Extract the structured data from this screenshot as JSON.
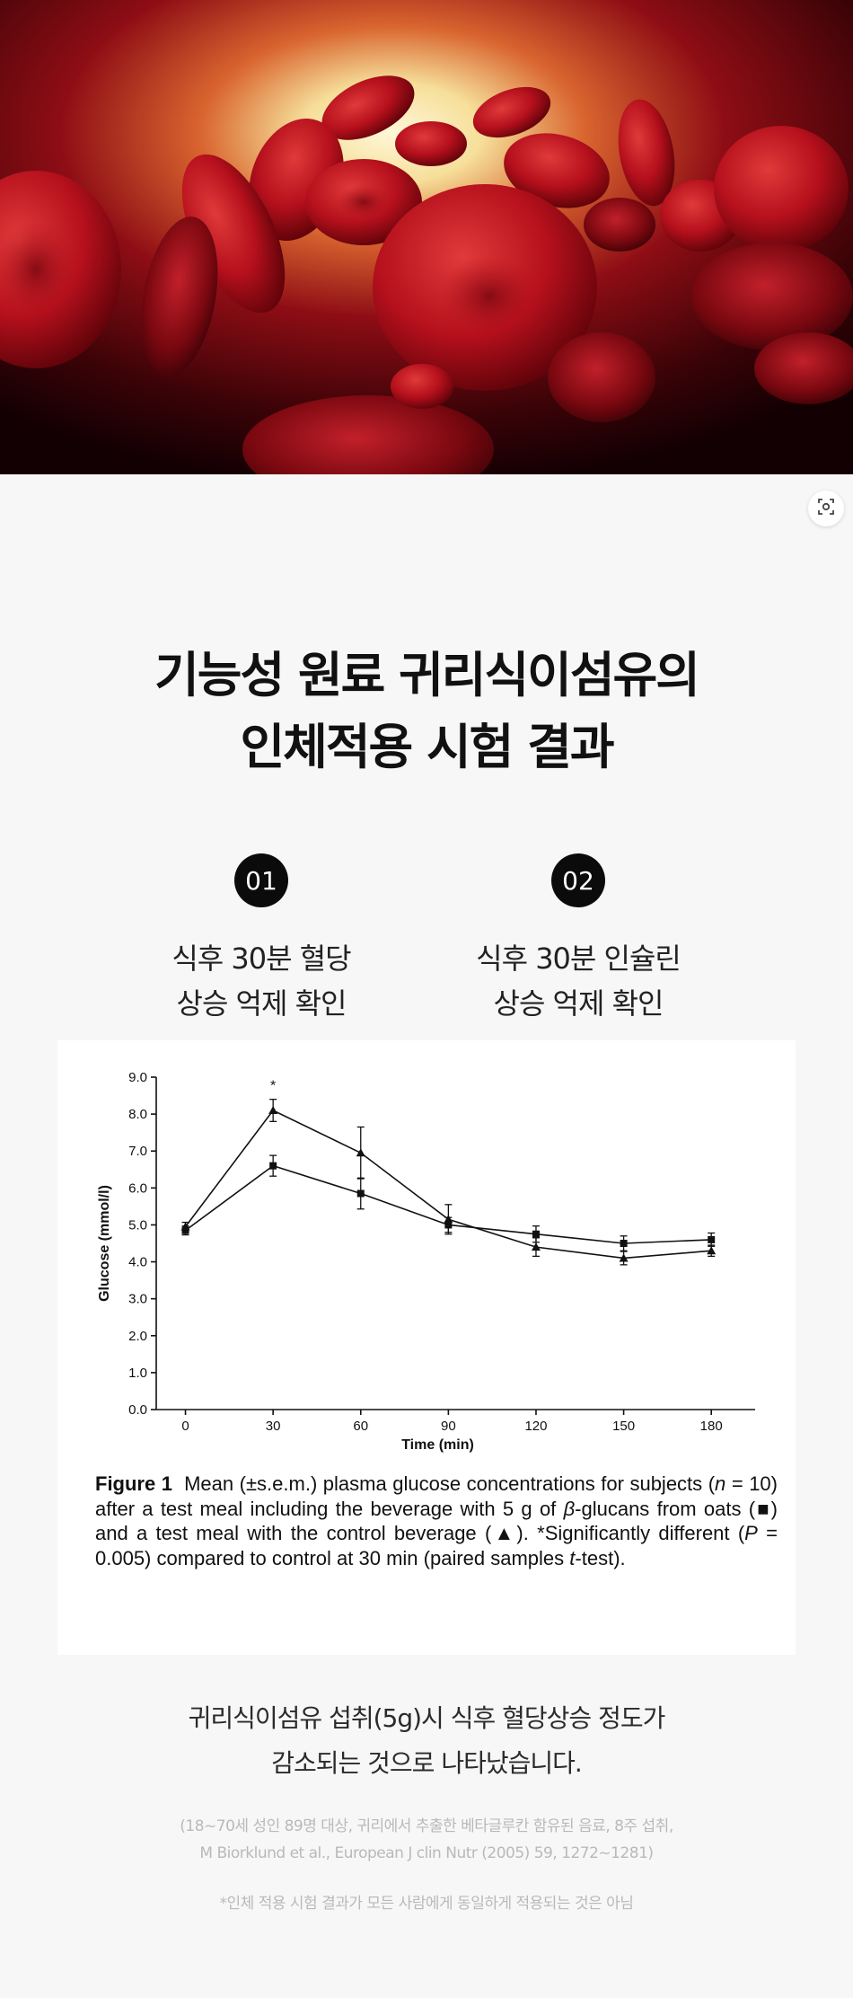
{
  "headline": {
    "line1": "기능성 원료 귀리식이섬유의",
    "line2": "인체적용 시험 결과"
  },
  "claims": [
    {
      "number": "01",
      "line1": "식후 30분 혈당",
      "line2": "상승 억제 확인"
    },
    {
      "number": "02",
      "line1": "식후 30분 인슐린",
      "line2": "상승 억제 확인"
    }
  ],
  "figure": {
    "caption_label": "Figure 1",
    "caption_text_1": "Mean (±s.e.m.) plasma glucose concentrations for subjects (",
    "caption_n": "n",
    "caption_text_2": " = 10) after a test meal including the beverage with 5 g of ",
    "caption_beta": "β",
    "caption_text_3": "-glucans from oats (■) and a test meal with the control beverage (▲). *Significantly different (",
    "caption_p": "P",
    "caption_text_4": " = 0.005) compared to control at 30 min (paired samples ",
    "caption_t": "t",
    "caption_text_5": "-test)."
  },
  "chart_data": {
    "type": "line",
    "xlabel": "Time (min)",
    "ylabel": "Glucose (mmol/l)",
    "x": [
      0,
      30,
      60,
      90,
      120,
      150,
      180
    ],
    "xlim": [
      -10,
      195
    ],
    "ylim": [
      0,
      9
    ],
    "yticks": [
      "0.0",
      "1.0",
      "2.0",
      "3.0",
      "4.0",
      "5.0",
      "6.0",
      "7.0",
      "8.0",
      "9.0"
    ],
    "xticks": [
      "0",
      "30",
      "60",
      "90",
      "120",
      "150",
      "180"
    ],
    "series": [
      {
        "marker": "square",
        "values": [
          4.85,
          6.6,
          5.85,
          5.0,
          4.75,
          4.5,
          4.6
        ],
        "errors": [
          0.12,
          0.28,
          0.42,
          0.2,
          0.22,
          0.2,
          0.18
        ]
      },
      {
        "marker": "triangle",
        "values": [
          4.95,
          8.1,
          6.95,
          5.15,
          4.4,
          4.1,
          4.3
        ],
        "errors": [
          0.12,
          0.3,
          0.7,
          0.4,
          0.25,
          0.18,
          0.15
        ]
      }
    ],
    "annotations": [
      {
        "x": 30,
        "text": "*"
      }
    ],
    "grid": false
  },
  "summary": {
    "line1": "귀리식이섬유 섭취(5g)시 식후 혈당상승 정도가",
    "line2": "감소되는 것으로 나타났습니다."
  },
  "reference": {
    "line1": "(18~70세 성인 89명 대상, 귀리에서 추출한 베타글루칸 함유된 음료, 8주 섭취,",
    "line2": "M Biorklund et al., European J clin Nutr (2005) 59, 1272~1281)"
  },
  "disclaimer": "*인체 적용 시험 결과가 모든 사람에게 동일하게 적용되는 것은 아님",
  "icons": {
    "lens": "visual-search-icon"
  },
  "colors": {
    "accent": "#0b0b0b",
    "hero_red": "#b0101c"
  }
}
